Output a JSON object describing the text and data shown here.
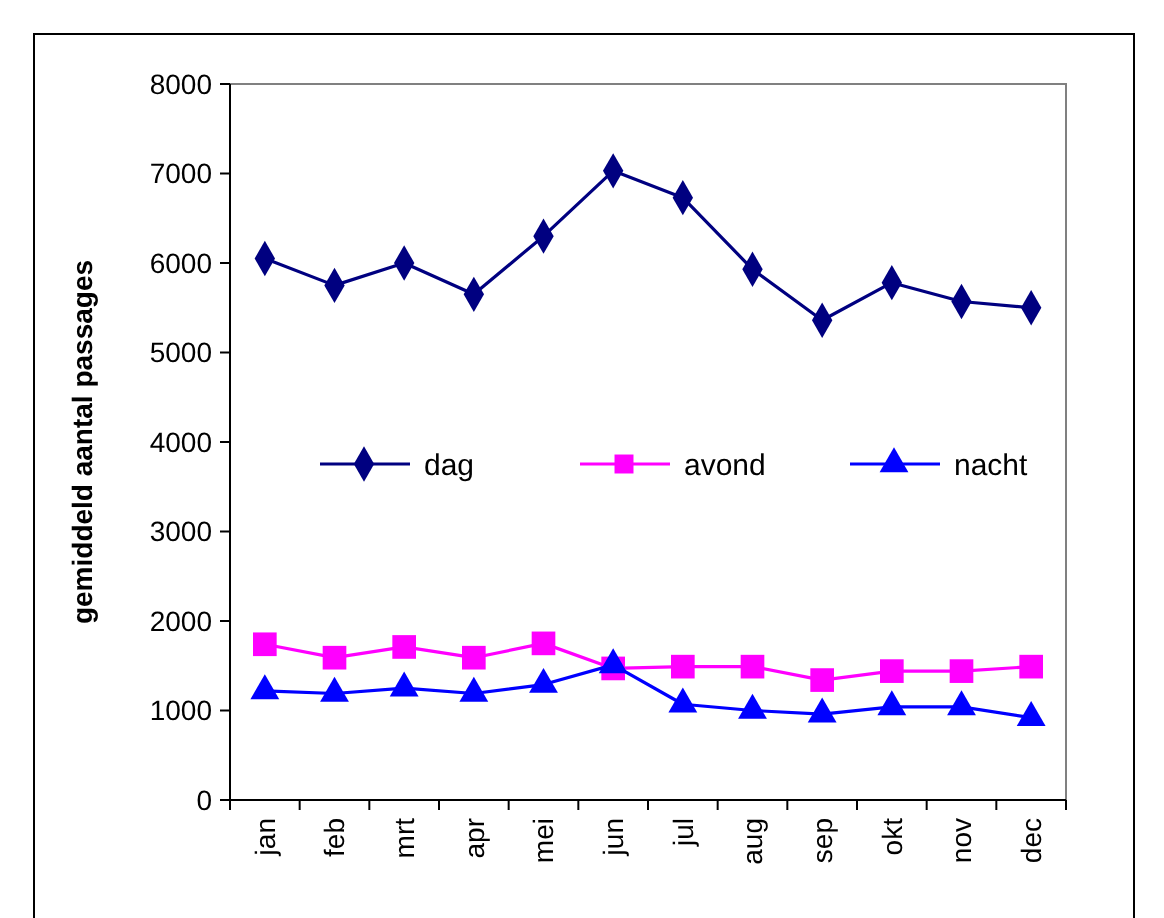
{
  "chart_data": {
    "type": "line",
    "ylabel": "gemiddeld aantal passages",
    "categories": [
      "jan",
      "feb",
      "mrt",
      "apr",
      "mei",
      "jun",
      "jul",
      "aug",
      "sep",
      "okt",
      "nov",
      "dec"
    ],
    "series": [
      {
        "name": "dag",
        "color": "#000080",
        "marker": "diamond",
        "values": [
          6050,
          5750,
          6000,
          5650,
          6300,
          7030,
          6730,
          5930,
          5360,
          5780,
          5570,
          5500
        ]
      },
      {
        "name": "avond",
        "color": "#ff00ff",
        "marker": "square",
        "values": [
          1740,
          1590,
          1710,
          1590,
          1750,
          1470,
          1490,
          1490,
          1340,
          1440,
          1440,
          1490
        ]
      },
      {
        "name": "nacht",
        "color": "#0000ff",
        "marker": "triangle",
        "values": [
          1220,
          1190,
          1250,
          1190,
          1290,
          1510,
          1070,
          1000,
          960,
          1040,
          1040,
          920
        ]
      }
    ],
    "ylim": [
      0,
      8000
    ],
    "yticks": [
      0,
      1000,
      2000,
      3000,
      4000,
      5000,
      6000,
      7000,
      8000
    ],
    "grid": false,
    "legend": "center"
  }
}
